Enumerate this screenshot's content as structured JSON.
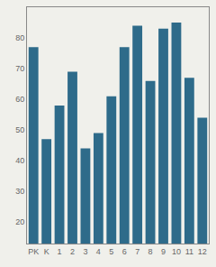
{
  "chart_data": {
    "type": "bar",
    "categories": [
      "PK",
      "K",
      "1",
      "2",
      "3",
      "4",
      "5",
      "6",
      "7",
      "8",
      "9",
      "10",
      "11",
      "12"
    ],
    "values": [
      77,
      47,
      58,
      69,
      44,
      49,
      61,
      77,
      84,
      66,
      83,
      85,
      67,
      54
    ],
    "color": "#2e6b8a",
    "ylim": [
      13,
      90
    ],
    "yticks": [
      20,
      30,
      40,
      50,
      60,
      70,
      80
    ],
    "grid": false
  }
}
